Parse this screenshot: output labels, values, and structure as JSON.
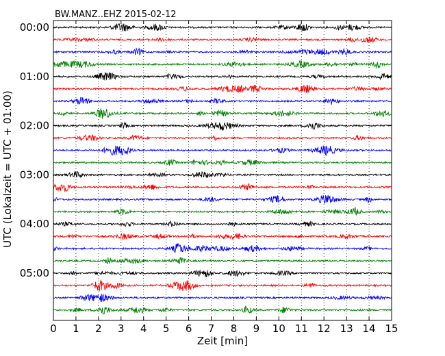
{
  "chart_data": {
    "type": "line",
    "title": "BW.MANZ..EHZ 2015-02-12",
    "xlabel": "Zeit  [min]",
    "ylabel": "UTC (Lokalzeit = UTC + 01:00)",
    "xlim": [
      0,
      15
    ],
    "x_ticks": [
      "0",
      "1",
      "2",
      "3",
      "4",
      "5",
      "6",
      "7",
      "8",
      "9",
      "10",
      "11",
      "12",
      "13",
      "14",
      "15"
    ],
    "y_ticks": [
      "00:00",
      "01:00",
      "02:00",
      "03:00",
      "04:00",
      "05:00"
    ],
    "grid": "vertical dotted at each minute",
    "trace_colors": [
      "#000000",
      "#ff0000",
      "#0000ff",
      "#007f00"
    ],
    "traces": [
      {
        "start": "00:00"
      },
      {
        "start": "00:15"
      },
      {
        "start": "00:30"
      },
      {
        "start": "00:45"
      },
      {
        "start": "01:00"
      },
      {
        "start": "01:15"
      },
      {
        "start": "01:30"
      },
      {
        "start": "01:45"
      },
      {
        "start": "02:00"
      },
      {
        "start": "02:15"
      },
      {
        "start": "02:30"
      },
      {
        "start": "02:45"
      },
      {
        "start": "03:00"
      },
      {
        "start": "03:15"
      },
      {
        "start": "03:30"
      },
      {
        "start": "03:45"
      },
      {
        "start": "04:00"
      },
      {
        "start": "04:15"
      },
      {
        "start": "04:30"
      },
      {
        "start": "04:45"
      },
      {
        "start": "05:00"
      },
      {
        "start": "05:15"
      },
      {
        "start": "05:30"
      },
      {
        "start": "05:45"
      }
    ]
  }
}
